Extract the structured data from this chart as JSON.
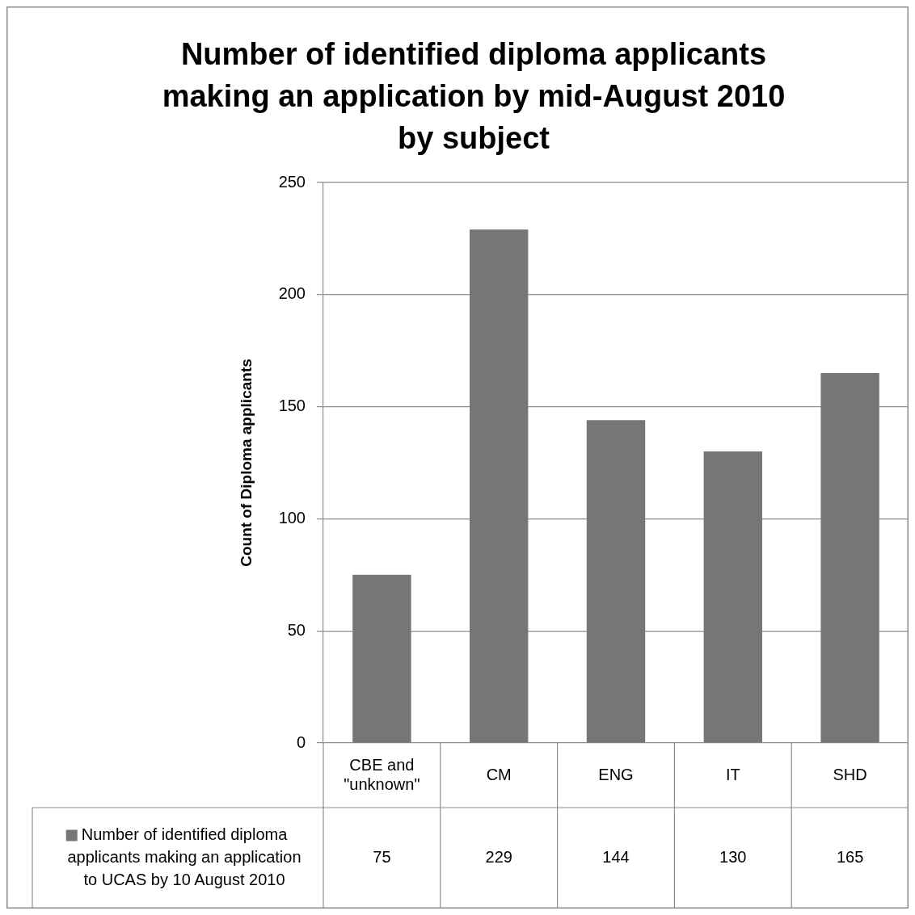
{
  "chart_data": {
    "type": "bar",
    "title": "Number of identified diploma applicants making an application by mid-August 2010 by subject",
    "ylabel": "Count of Diploma applicants",
    "categories": [
      "CBE and \"unknown\"",
      "CM",
      "ENG",
      "IT",
      "SHD"
    ],
    "series": [
      {
        "name": "Number of identified diploma applicants making an application to UCAS by 10 August 2010",
        "color": "#767676",
        "values": [
          75,
          229,
          144,
          130,
          165
        ]
      }
    ],
    "ylim": [
      0,
      250
    ],
    "yticks": [
      0,
      50,
      100,
      150,
      200,
      250
    ],
    "grid": "y",
    "legend": "bottom",
    "data_labels": true
  }
}
